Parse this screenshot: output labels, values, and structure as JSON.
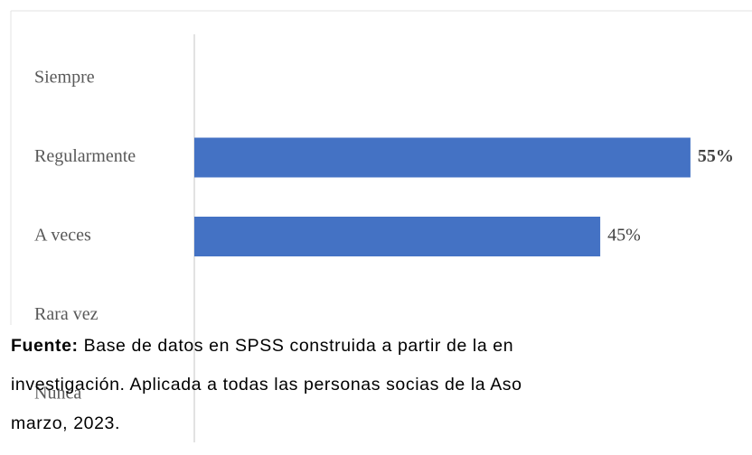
{
  "chart_data": {
    "type": "bar",
    "orientation": "horizontal",
    "categories": [
      "Siempre",
      "Regularmente",
      "A veces",
      "Rara vez",
      "Nunca"
    ],
    "values": [
      0,
      55,
      45,
      0,
      0
    ],
    "value_labels": [
      null,
      "55%",
      "45%",
      null,
      null
    ],
    "color": "#4472c4"
  },
  "caption": {
    "label": "Fuente:",
    "lines": [
      "Base de datos en SPSS construida a partir de la en",
      "investigación. Aplicada a todas las personas socias de la Aso",
      "marzo, 2023."
    ]
  }
}
